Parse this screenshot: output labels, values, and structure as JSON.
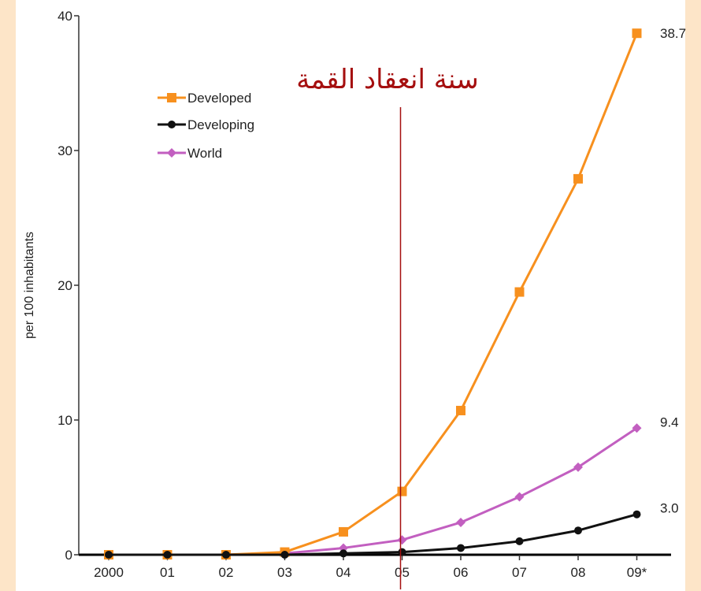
{
  "page": {
    "background": "#fde5c8",
    "panel_background": "#ffffff"
  },
  "chart_data": {
    "type": "line",
    "x": [
      "2000",
      "01",
      "02",
      "03",
      "04",
      "05",
      "06",
      "07",
      "08",
      "09*"
    ],
    "x_tick_labels": [
      "2000",
      "01",
      "02",
      "03",
      "04",
      "05",
      "06",
      "07",
      "08",
      "09*"
    ],
    "ylabel": "per 100 inhabitants",
    "xlabel": "",
    "ylim": [
      0,
      40
    ],
    "y_ticks": [
      0,
      10,
      20,
      30,
      40
    ],
    "grid": false,
    "legend_position": "top-left",
    "series": [
      {
        "name": "Developed",
        "color": "#f7901e",
        "marker": "square",
        "values": [
          0.0,
          0.0,
          0.0,
          0.2,
          1.7,
          4.7,
          10.7,
          19.5,
          27.9,
          38.7
        ],
        "end_label": "38.7"
      },
      {
        "name": "Developing",
        "color": "#111111",
        "marker": "circle",
        "values": [
          0.0,
          0.0,
          0.0,
          0.0,
          0.1,
          0.2,
          0.5,
          1.0,
          1.8,
          3.0
        ],
        "end_label": "3.0"
      },
      {
        "name": "World",
        "color": "#c25fc0",
        "marker": "diamond",
        "values": [
          0.0,
          0.0,
          0.0,
          0.1,
          0.5,
          1.1,
          2.4,
          4.3,
          6.5,
          9.4
        ],
        "end_label": "9.4"
      }
    ],
    "annotation": {
      "text": "سنة انعقاد القمة",
      "x": "05",
      "color": "#a50f0f"
    }
  }
}
